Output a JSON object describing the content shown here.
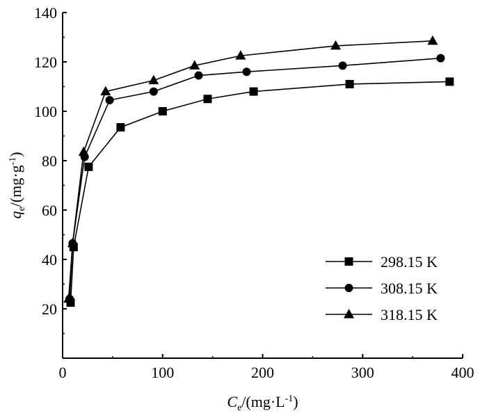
{
  "chart_data": {
    "type": "line",
    "title": "",
    "xlabel": {
      "main": "C",
      "sub": "e",
      "unit": "/(mg·L",
      "sup": "-1",
      "close": ")"
    },
    "ylabel": {
      "main": "q",
      "sub": "e",
      "unit": "/(mg·g",
      "sup": "-1",
      "close": ")"
    },
    "xlim": [
      0,
      400
    ],
    "ylim": [
      0,
      140
    ],
    "xticks": [
      0,
      100,
      200,
      300,
      400
    ],
    "yticks": [
      20,
      40,
      60,
      80,
      100,
      120,
      140
    ],
    "grid": false,
    "legend_position": "bottom-right",
    "series": [
      {
        "name": "298.15 K",
        "marker": "square",
        "x": [
          8,
          11,
          26,
          58,
          100,
          145,
          191,
          287,
          387
        ],
        "y": [
          22.5,
          45,
          77.5,
          93.5,
          100,
          105,
          108,
          111,
          112
        ]
      },
      {
        "name": "308.15 K",
        "marker": "circle",
        "x": [
          7,
          10,
          22,
          47,
          91,
          136,
          184,
          280,
          378
        ],
        "y": [
          24,
          46.5,
          81.5,
          104.5,
          108,
          114.5,
          116,
          118.5,
          121.5
        ]
      },
      {
        "name": "318.15 K",
        "marker": "triangle",
        "x": [
          6,
          10,
          21,
          43,
          91,
          132,
          178,
          273,
          370
        ],
        "y": [
          24,
          46.5,
          83.5,
          108,
          112.5,
          118.5,
          122.5,
          126.5,
          128.5
        ]
      }
    ]
  }
}
